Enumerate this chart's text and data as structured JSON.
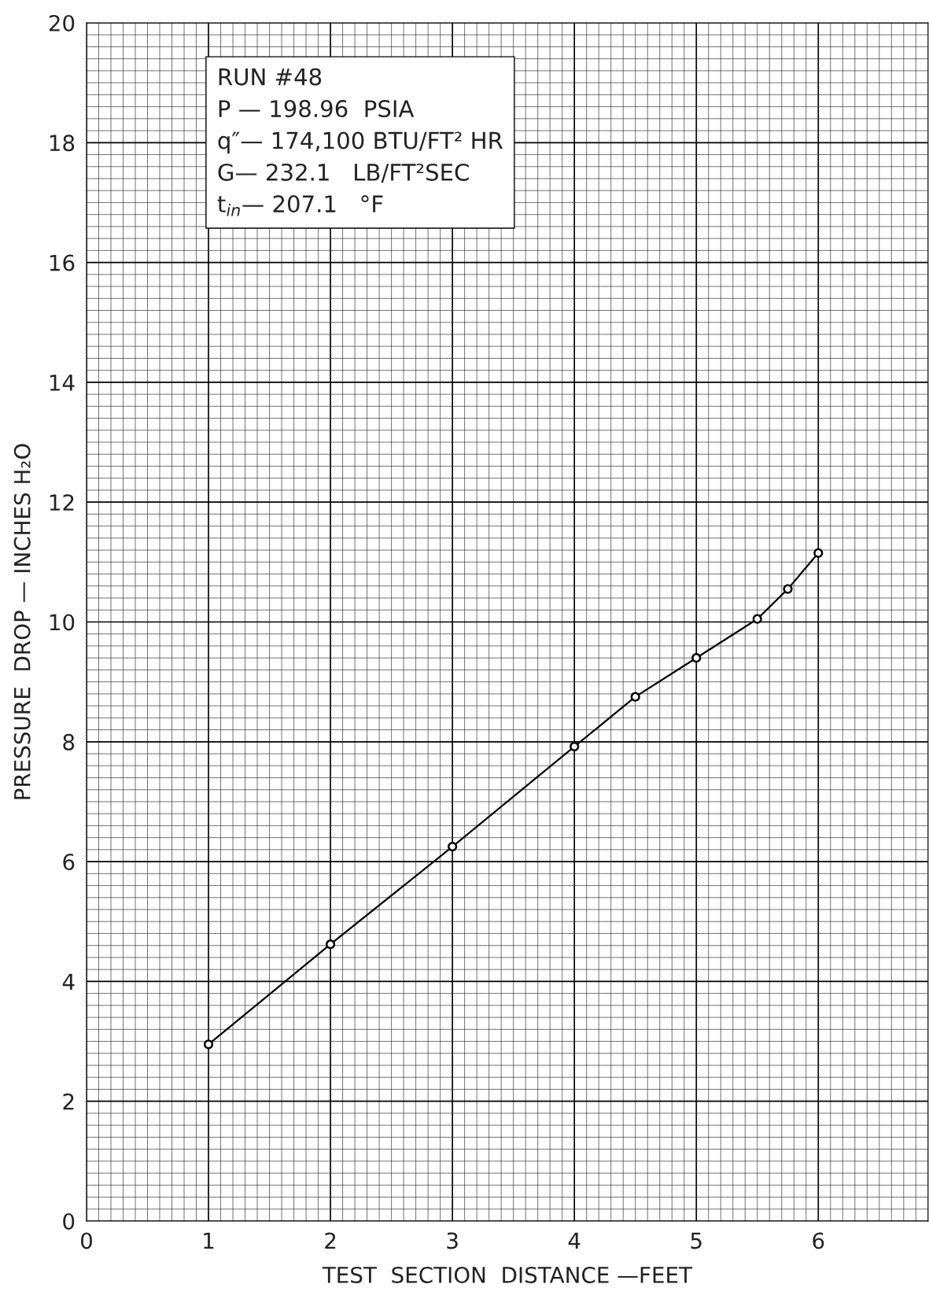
{
  "chart_data": {
    "type": "line",
    "xlabel": "TEST  SECTION  DISTANCE —FEET",
    "ylabel": "PRESSURE  DROP — INCHES H₂O",
    "x": [
      1,
      2,
      3,
      4,
      4.5,
      5,
      5.5,
      5.75,
      6
    ],
    "series": [
      {
        "color": "#000000",
        "values": [
          2.95,
          4.62,
          6.25,
          7.92,
          8.75,
          9.4,
          10.05,
          10.55,
          11.15
        ]
      }
    ],
    "xlim": [
      0,
      6.9
    ],
    "xticks": [
      0,
      1,
      2,
      3,
      4,
      5,
      6
    ],
    "ylim": [
      0,
      20
    ],
    "yticks": [
      0,
      2,
      4,
      6,
      8,
      10,
      12,
      14,
      16,
      18,
      20
    ],
    "grid": true,
    "marker": "circle",
    "line_style": "solid",
    "annotations": [
      "RUN #48",
      "P — 198.96  PSIA",
      "q″— 174,100 BTU/FT² HR",
      "G— 232.1   LB/FT²SEC",
      "t$_{in}$— 207.1   °F"
    ]
  }
}
